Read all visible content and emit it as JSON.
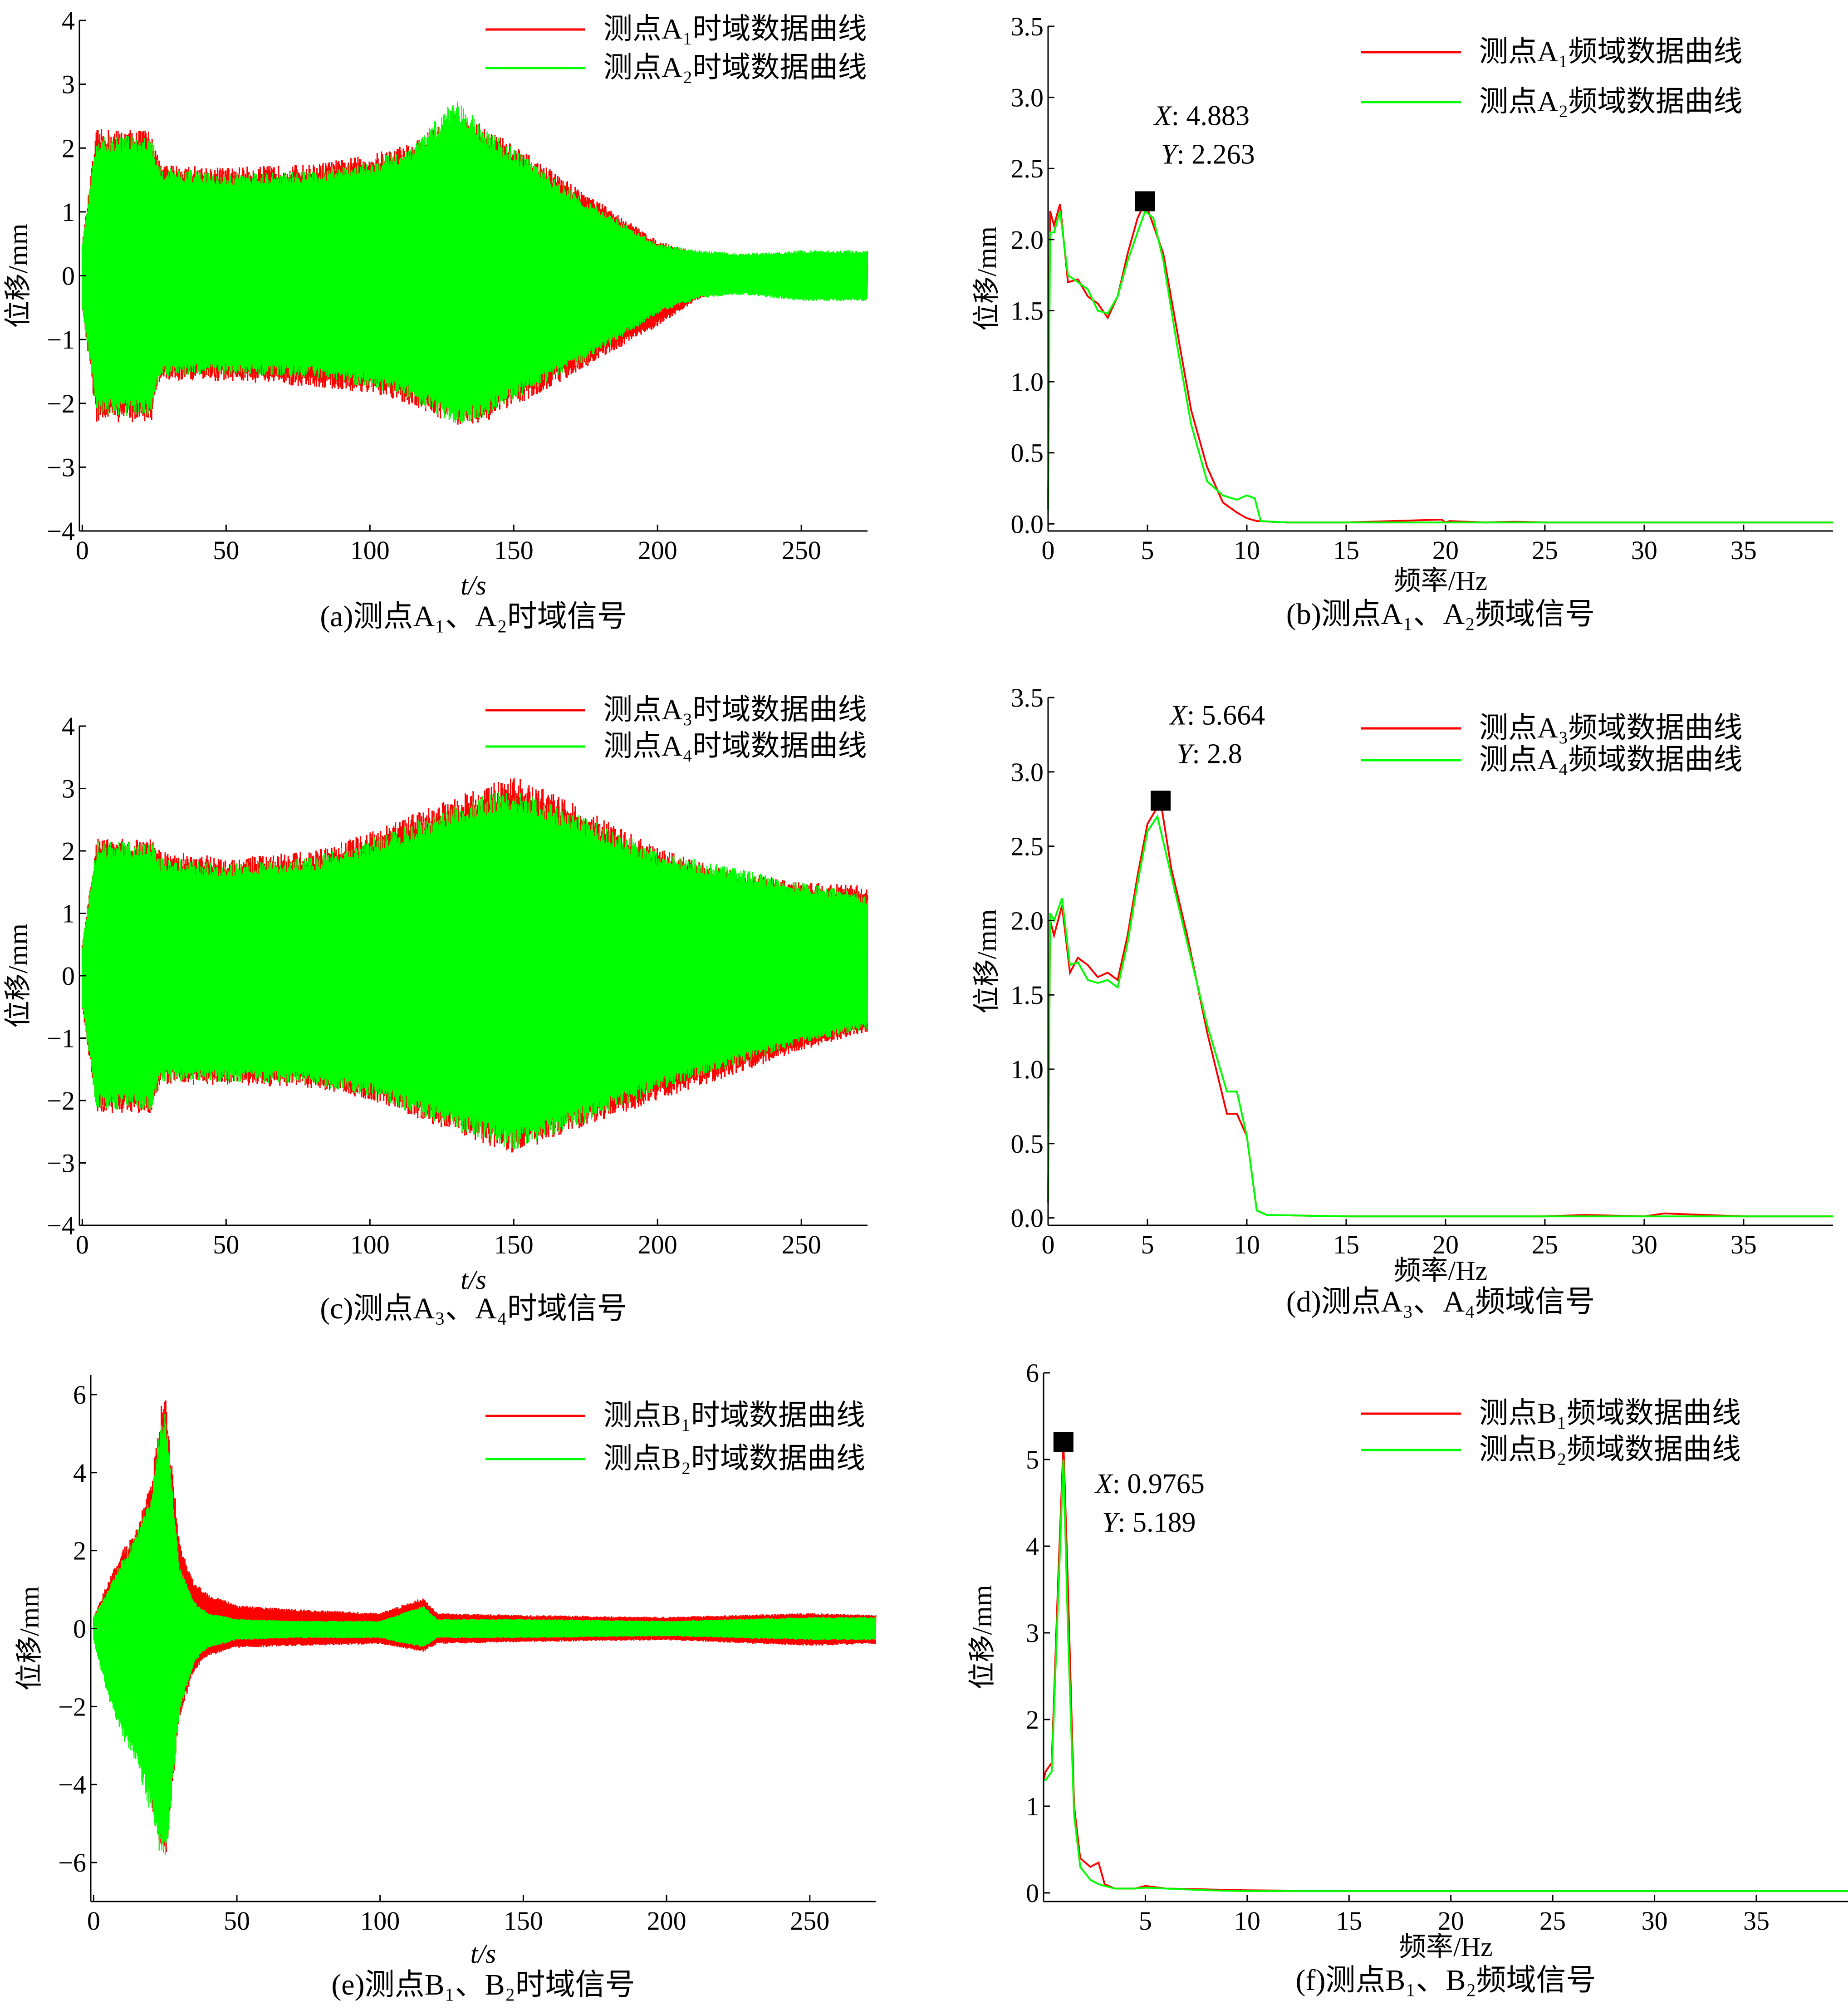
{
  "chart_data": [
    {
      "type": "line",
      "caption": "(a)测点A₁、A₂时域信号",
      "xlabel": "t/s",
      "ylabel": "位移/mm",
      "xlim": [
        -1,
        273
      ],
      "ylim": [
        -4,
        4
      ],
      "xticks": [
        "0",
        "50",
        "100",
        "150",
        "200",
        "250"
      ],
      "yticks": [
        "−4",
        "−3",
        "−2",
        "−1",
        "0",
        "1",
        "2",
        "3",
        "4"
      ],
      "legend_position": "top-right",
      "series": [
        {
          "name": "测点A₁时域数据曲线",
          "color": "#ff0000"
        },
        {
          "name": "测点A₂时域数据曲线",
          "color": "#00ff00"
        }
      ],
      "envelope": {
        "x": [
          0,
          5,
          24,
          27,
          50,
          80,
          100,
          115,
          130,
          140,
          150,
          165,
          180,
          200,
          215,
          230,
          250,
          273
        ],
        "upper_1": [
          0.5,
          2.3,
          2.3,
          1.75,
          1.7,
          1.75,
          1.9,
          2.1,
          2.55,
          2.35,
          2.05,
          1.6,
          1.15,
          0.55,
          0.35,
          0.25,
          0.2,
          0.2
        ],
        "lower_1": [
          -0.5,
          -2.3,
          -2.3,
          -1.65,
          -1.65,
          -1.75,
          -1.85,
          -2.05,
          -2.35,
          -2.3,
          -2.05,
          -1.7,
          -1.3,
          -0.8,
          -0.35,
          -0.25,
          -0.2,
          -0.2
        ],
        "upper_2": [
          0.5,
          2.2,
          2.2,
          1.7,
          1.6,
          1.65,
          1.8,
          2.05,
          2.8,
          2.3,
          2.0,
          1.5,
          1.05,
          0.5,
          0.4,
          0.35,
          0.4,
          0.4
        ],
        "lower_2": [
          -0.5,
          -2.2,
          -2.2,
          -1.6,
          -1.55,
          -1.6,
          -1.75,
          -1.95,
          -2.4,
          -2.2,
          -1.95,
          -1.6,
          -1.2,
          -0.6,
          -0.35,
          -0.3,
          -0.4,
          -0.4
        ]
      }
    },
    {
      "type": "line",
      "caption": "(b)测点A₁、A₂频域信号",
      "xlabel": "频率/Hz",
      "ylabel": "位移/mm",
      "xlim": [
        0,
        39.5
      ],
      "ylim": [
        -0.05,
        3.5
      ],
      "xticks": [
        "0",
        "5",
        "10",
        "15",
        "20",
        "25",
        "30",
        "35"
      ],
      "yticks": [
        "0.0",
        "0.5",
        "1.0",
        "1.5",
        "2.0",
        "2.5",
        "3.0",
        "3.5"
      ],
      "legend_position": "top-right",
      "annotation": {
        "x_label": "X",
        "x_value": ": 4.883",
        "y_label": "Y",
        "y_value": ": 2.263",
        "px": 4.883,
        "py": 2.263
      },
      "series": [
        {
          "name": "测点A₁频域数据曲线",
          "color": "#ff0000",
          "x": [
            0,
            0.1,
            0.3,
            0.6,
            1.0,
            1.5,
            2.0,
            2.5,
            3.0,
            3.5,
            4.0,
            4.5,
            4.883,
            5.3,
            5.8,
            6.5,
            7.2,
            8.0,
            8.8,
            9.5,
            10.0,
            10.5,
            12,
            15,
            19.8,
            20.0,
            20.2,
            22,
            23.5,
            25,
            30,
            35,
            39.5
          ],
          "y": [
            0.1,
            2.2,
            2.1,
            2.25,
            1.7,
            1.72,
            1.6,
            1.55,
            1.45,
            1.6,
            1.9,
            2.15,
            2.263,
            2.1,
            1.9,
            1.35,
            0.8,
            0.4,
            0.15,
            0.08,
            0.04,
            0.02,
            0.01,
            0.01,
            0.03,
            0.01,
            0.02,
            0.01,
            0.015,
            0.01,
            0.01,
            0.01,
            0.01
          ]
        },
        {
          "name": "测点A₂频域数据曲线",
          "color": "#00ff00",
          "x": [
            0,
            0.1,
            0.3,
            0.6,
            1.0,
            1.5,
            2.0,
            2.5,
            3.0,
            3.5,
            4.0,
            4.5,
            4.883,
            5.3,
            5.8,
            6.5,
            7.2,
            8.0,
            8.8,
            9.5,
            10.0,
            10.4,
            10.7,
            12,
            15,
            20,
            25,
            30,
            35,
            39.5
          ],
          "y": [
            0.1,
            2.05,
            2.05,
            2.2,
            1.75,
            1.7,
            1.65,
            1.5,
            1.48,
            1.6,
            1.85,
            2.05,
            2.2,
            2.15,
            1.85,
            1.25,
            0.7,
            0.3,
            0.2,
            0.17,
            0.2,
            0.18,
            0.02,
            0.01,
            0.01,
            0.01,
            0.01,
            0.01,
            0.01,
            0.01
          ]
        }
      ]
    },
    {
      "type": "line",
      "caption": "(c)测点A₃、A₄时域信号",
      "xlabel": "t/s",
      "ylabel": "位移/mm",
      "xlim": [
        -1,
        273
      ],
      "ylim": [
        -4,
        4
      ],
      "xticks": [
        "0",
        "50",
        "100",
        "150",
        "200",
        "250"
      ],
      "yticks": [
        "−4",
        "−3",
        "−2",
        "−1",
        "0",
        "1",
        "2",
        "3",
        "4"
      ],
      "legend_position": "top-right",
      "series": [
        {
          "name": "测点A₃时域数据曲线",
          "color": "#ff0000"
        },
        {
          "name": "测点A₄时域数据曲线",
          "color": "#00ff00"
        }
      ],
      "envelope": {
        "x": [
          0,
          5,
          24,
          27,
          50,
          80,
          100,
          120,
          140,
          150,
          170,
          200,
          220,
          250,
          273
        ],
        "upper_1": [
          0.5,
          2.2,
          2.2,
          2.0,
          1.9,
          2.0,
          2.3,
          2.7,
          3.05,
          3.2,
          2.8,
          2.05,
          1.75,
          1.5,
          1.45
        ],
        "lower_1": [
          -0.5,
          -2.2,
          -2.2,
          -1.75,
          -1.75,
          -1.8,
          -2.0,
          -2.35,
          -2.7,
          -2.85,
          -2.5,
          -2.0,
          -1.7,
          -1.2,
          -0.9
        ],
        "upper_2": [
          0.5,
          2.15,
          2.15,
          1.9,
          1.8,
          1.9,
          2.2,
          2.55,
          2.9,
          3.0,
          2.65,
          2.0,
          1.8,
          1.5,
          1.3
        ],
        "lower_2": [
          -0.5,
          -2.15,
          -2.15,
          -1.7,
          -1.7,
          -1.75,
          -1.95,
          -2.3,
          -2.65,
          -2.8,
          -2.45,
          -1.85,
          -1.55,
          -1.1,
          -0.85
        ]
      }
    },
    {
      "type": "line",
      "caption": "(d)测点A₃、A₄频域信号",
      "xlabel": "频率/Hz",
      "ylabel": "位移/mm",
      "xlim": [
        0,
        39.5
      ],
      "ylim": [
        -0.05,
        3.5
      ],
      "xticks": [
        "0",
        "5",
        "10",
        "15",
        "20",
        "25",
        "30",
        "35"
      ],
      "yticks": [
        "0.0",
        "0.5",
        "1.0",
        "1.5",
        "2.0",
        "2.5",
        "3.0",
        "3.5"
      ],
      "legend_position": "top-right",
      "annotation": {
        "x_label": "X",
        "x_value": ": 5.664",
        "y_label": "Y",
        "y_value": ": 2.8",
        "px": 5.664,
        "py": 2.8
      },
      "series": [
        {
          "name": "测点A₃频域数据曲线",
          "color": "#ff0000",
          "x": [
            0,
            0.1,
            0.3,
            0.7,
            1.1,
            1.5,
            2.0,
            2.5,
            3.0,
            3.5,
            4.0,
            4.5,
            5.0,
            5.664,
            6.2,
            7.0,
            8.0,
            9.0,
            9.5,
            10.0,
            10.5,
            11,
            15,
            20,
            25,
            27,
            30,
            31,
            35,
            39.5
          ],
          "y": [
            0.1,
            2.0,
            1.9,
            2.1,
            1.65,
            1.75,
            1.7,
            1.62,
            1.65,
            1.6,
            1.9,
            2.3,
            2.65,
            2.8,
            2.35,
            1.9,
            1.25,
            0.7,
            0.7,
            0.55,
            0.05,
            0.02,
            0.01,
            0.01,
            0.01,
            0.02,
            0.01,
            0.03,
            0.01,
            0.01
          ]
        },
        {
          "name": "测点A₄频域数据曲线",
          "color": "#00ff00",
          "x": [
            0,
            0.1,
            0.3,
            0.7,
            1.1,
            1.5,
            2.0,
            2.5,
            3.0,
            3.5,
            4.0,
            4.5,
            5.0,
            5.5,
            6.2,
            7.0,
            8.0,
            9.0,
            9.5,
            10.0,
            10.5,
            11,
            15,
            20,
            25,
            30,
            35,
            39.5
          ],
          "y": [
            0.1,
            2.05,
            2.0,
            2.15,
            1.7,
            1.72,
            1.6,
            1.58,
            1.6,
            1.55,
            1.85,
            2.25,
            2.6,
            2.7,
            2.3,
            1.85,
            1.3,
            0.85,
            0.85,
            0.55,
            0.05,
            0.02,
            0.01,
            0.01,
            0.01,
            0.01,
            0.01,
            0.01
          ]
        }
      ]
    },
    {
      "type": "line",
      "caption": "(e)测点B₁、B₂时域信号",
      "xlabel": "t/s",
      "ylabel": "位移/mm",
      "xlim": [
        -1,
        273
      ],
      "ylim": [
        -7,
        6.5
      ],
      "xticks": [
        "0",
        "50",
        "100",
        "150",
        "200",
        "250"
      ],
      "yticks": [
        "−6",
        "−4",
        "−2",
        "0",
        "2",
        "4",
        "6"
      ],
      "legend_position": "top-right",
      "series": [
        {
          "name": "测点B₁时域数据曲线",
          "color": "#ff0000"
        },
        {
          "name": "测点B₂时域数据曲线",
          "color": "#00ff00"
        }
      ],
      "envelope": {
        "x": [
          0,
          5,
          10,
          15,
          20,
          23,
          25,
          27,
          30,
          35,
          40,
          50,
          70,
          100,
          115,
          120,
          150,
          200,
          250,
          273
        ],
        "upper_1": [
          0.3,
          1.2,
          2.0,
          2.6,
          3.8,
          5.5,
          6.2,
          4.5,
          2.2,
          1.2,
          0.9,
          0.6,
          0.5,
          0.4,
          0.8,
          0.4,
          0.35,
          0.3,
          0.4,
          0.35
        ],
        "lower_1": [
          -0.3,
          -1.5,
          -2.5,
          -3.2,
          -4.5,
          -5.5,
          -6.0,
          -4.5,
          -2.3,
          -1.1,
          -0.7,
          -0.5,
          -0.45,
          -0.4,
          -0.6,
          -0.4,
          -0.35,
          -0.3,
          -0.45,
          -0.4
        ],
        "upper_2": [
          0.3,
          1.0,
          1.8,
          2.4,
          3.5,
          5.2,
          5.9,
          4.0,
          1.6,
          0.7,
          0.4,
          0.25,
          0.2,
          0.2,
          0.6,
          0.25,
          0.25,
          0.2,
          0.3,
          0.3
        ],
        "lower_2": [
          -0.3,
          -1.8,
          -2.8,
          -3.5,
          -4.8,
          -5.8,
          -6.2,
          -4.6,
          -2.2,
          -0.9,
          -0.5,
          -0.3,
          -0.25,
          -0.25,
          -0.5,
          -0.25,
          -0.25,
          -0.2,
          -0.3,
          -0.3
        ]
      }
    },
    {
      "type": "line",
      "caption": "(f)测点B₁、B₂频域信号",
      "xlabel": "频率/Hz",
      "ylabel": "位移/mm",
      "xlim": [
        0,
        39.5
      ],
      "ylim": [
        -0.1,
        6
      ],
      "xticks": [
        "5",
        "10",
        "15",
        "20",
        "25",
        "30",
        "35"
      ],
      "yticks": [
        "0",
        "1",
        "2",
        "3",
        "4",
        "5",
        "6"
      ],
      "legend_position": "top-right",
      "annotation": {
        "x_label": "X",
        "x_value": ": 0.9765",
        "y_label": "Y",
        "y_value": ": 5.189",
        "px": 0.9765,
        "py": 5.189
      },
      "series": [
        {
          "name": "测点B₁频域数据曲线",
          "color": "#ff0000",
          "x": [
            0,
            0.1,
            0.4,
            0.7,
            0.9765,
            1.2,
            1.5,
            1.8,
            2.3,
            2.7,
            3.0,
            3.5,
            4.5,
            5.0,
            6.0,
            8.0,
            10.0,
            15,
            20,
            25,
            30,
            35,
            39.5
          ],
          "y": [
            1.3,
            1.4,
            1.5,
            3.5,
            5.189,
            3.5,
            1.0,
            0.4,
            0.3,
            0.35,
            0.1,
            0.05,
            0.05,
            0.08,
            0.05,
            0.04,
            0.03,
            0.02,
            0.02,
            0.02,
            0.02,
            0.02,
            0.02
          ]
        },
        {
          "name": "测点B₂频域数据曲线",
          "color": "#00ff00",
          "x": [
            0,
            0.1,
            0.4,
            0.7,
            0.9765,
            1.2,
            1.5,
            1.8,
            2.3,
            2.7,
            3.0,
            3.5,
            4.5,
            5.0,
            6.0,
            8.0,
            10.0,
            15,
            20,
            25,
            30,
            35,
            39.5
          ],
          "y": [
            1.3,
            1.3,
            1.4,
            3.3,
            5.0,
            3.0,
            0.9,
            0.3,
            0.15,
            0.1,
            0.08,
            0.05,
            0.05,
            0.06,
            0.05,
            0.03,
            0.02,
            0.02,
            0.02,
            0.02,
            0.02,
            0.02,
            0.02
          ]
        }
      ]
    }
  ]
}
